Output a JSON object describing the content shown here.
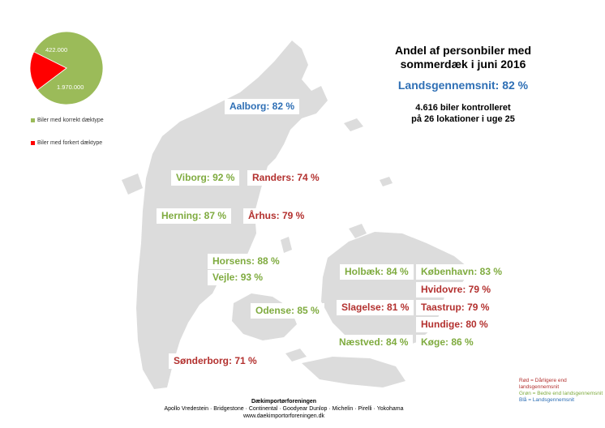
{
  "header": {
    "title_line1": "Andel af personbiler med",
    "title_line2": "sommerdæk i juni 2016",
    "average": "Landsgennemsnit: 82 %",
    "sub_line1": "4.616 biler kontrolleret",
    "sub_line2": "på 26 lokationer i uge 25"
  },
  "chart_data": {
    "type": "pie",
    "slices": [
      {
        "label": "Biler med korrekt dæktype",
        "value": 1970000,
        "value_label": "1.970.000",
        "color": "#9bbb59"
      },
      {
        "label": "Biler med forkert dæktype",
        "value": 422000,
        "value_label": "422.000",
        "color": "#ff0000"
      }
    ],
    "legend_position": "bottom"
  },
  "locations": [
    {
      "text": "Aalborg: 82 %",
      "status": "blue"
    },
    {
      "text": "Viborg: 92 %",
      "status": "green"
    },
    {
      "text": "Randers: 74 %",
      "status": "red"
    },
    {
      "text": "Herning: 87 %",
      "status": "green"
    },
    {
      "text": "Århus: 79 %",
      "status": "red"
    },
    {
      "text": "Horsens: 88 %",
      "status": "green"
    },
    {
      "text": "Vejle: 93 %",
      "status": "green"
    },
    {
      "text": "Odense: 85 %",
      "status": "green"
    },
    {
      "text": "Sønderborg: 71 %",
      "status": "red"
    },
    {
      "text": "Holbæk: 84 %",
      "status": "green"
    },
    {
      "text": "København: 83 %",
      "status": "green"
    },
    {
      "text": "Hvidovre: 79 %",
      "status": "red"
    },
    {
      "text": "Slagelse: 81 %",
      "status": "red"
    },
    {
      "text": "Taastrup: 79 %",
      "status": "red"
    },
    {
      "text": "Hundige: 80 %",
      "status": "red"
    },
    {
      "text": "Næstved: 84 %",
      "status": "green"
    },
    {
      "text": "Køge: 86 %",
      "status": "green"
    }
  ],
  "color_key": {
    "red": "Rød = Dårligere end landsgennemsnit",
    "green": "Grøn = Bedre end landsgennemsnit",
    "blue": "Blå = Landsgennemsnit"
  },
  "colors": {
    "red": "#b3312f",
    "green": "#7fab3f",
    "blue": "#2e6fb5",
    "land": "#dcdcdc"
  },
  "footer": {
    "org": "Dækimportørforeningen",
    "brands": "Apollo Vredestein · Bridgestone · Continental · Goodyear Dunlop · Michelin · Pirelli · Yokohama",
    "url": "www.daekimportorforeningen.dk"
  }
}
